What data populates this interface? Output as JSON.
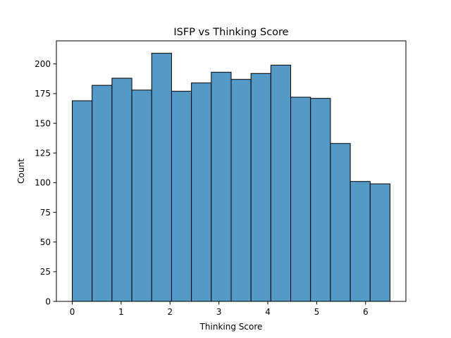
{
  "chart_data": {
    "type": "bar",
    "subtype": "histogram",
    "title": "ISFP vs Thinking Score",
    "xlabel": "Thinking Score",
    "ylabel": "Count",
    "bin_start": 0,
    "bin_width": 0.40625,
    "values": [
      169,
      182,
      188,
      178,
      209,
      177,
      184,
      193,
      187,
      192,
      199,
      172,
      171,
      133,
      101,
      99
    ],
    "xlim": [
      -0.325,
      6.825
    ],
    "ylim": [
      0,
      219.45
    ],
    "xticks": [
      "0",
      "1",
      "2",
      "3",
      "4",
      "5",
      "6"
    ],
    "yticks": [
      "0",
      "25",
      "50",
      "75",
      "100",
      "125",
      "150",
      "175",
      "200"
    ],
    "bar_color": "#5599c7",
    "edge_color": "#000000",
    "grid": false,
    "legend": "none"
  }
}
